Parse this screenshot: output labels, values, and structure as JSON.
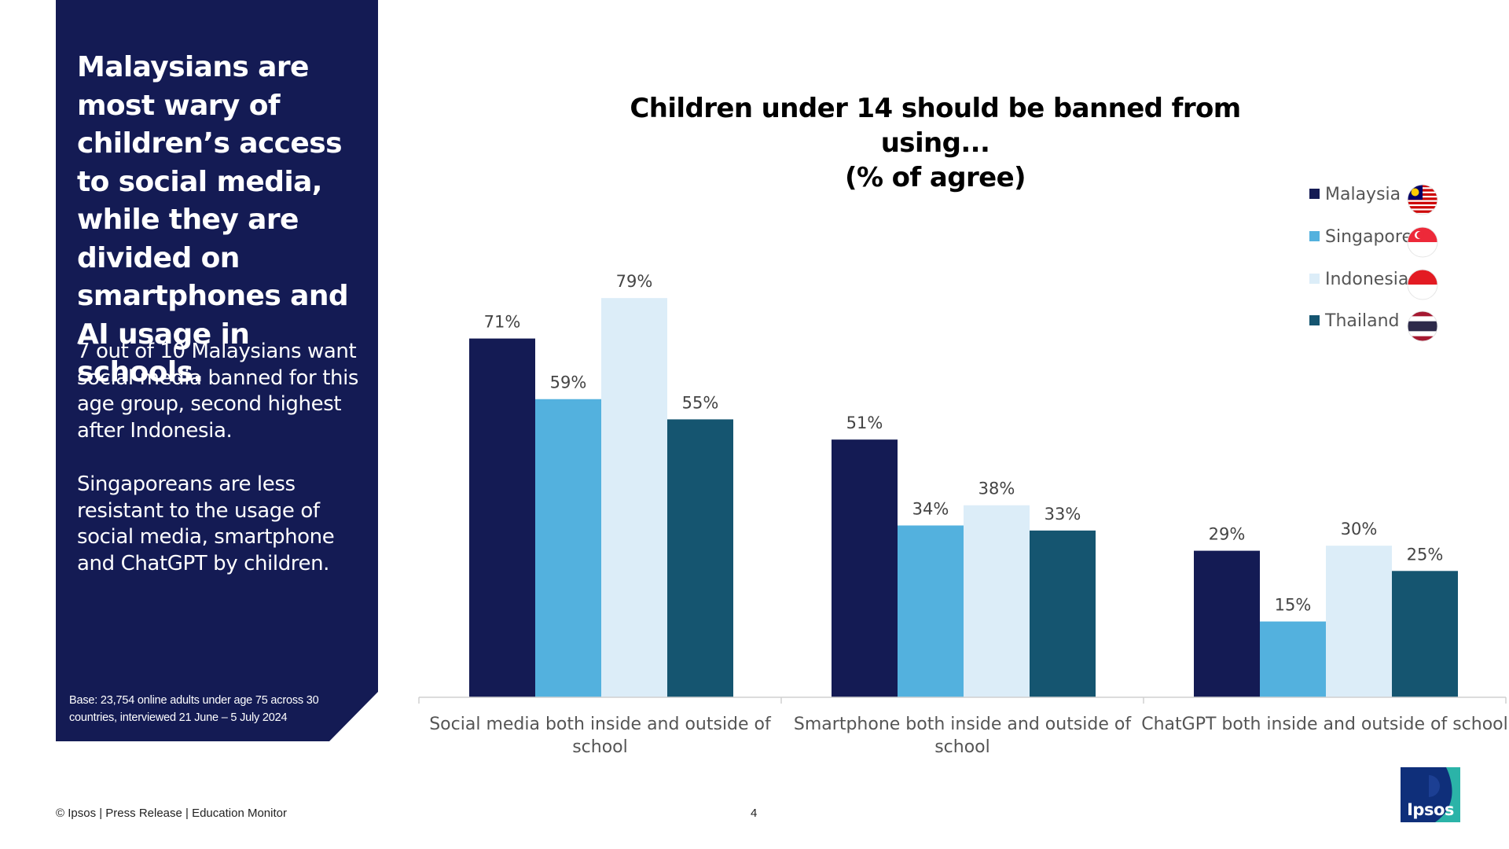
{
  "panel": {
    "headline": "Malaysians are most wary of children’s access to social media, while they are divided on smartphones and AI usage in schools.",
    "paragraph_1": "7 out of 10 Malaysians want social media banned for this age group, second highest after Indonesia.",
    "paragraph_2": "Singaporeans are less resistant to the usage of social media, smartphone and ChatGPT by children.",
    "base_note": "Base: 23,754 online adults under age 75 across 30 countries, interviewed 21 June – 5 July 2024",
    "color": "#141b54"
  },
  "chart_data": {
    "type": "bar",
    "title": "Children under 14 should be banned from using...",
    "subtitle": "(% of agree)",
    "categories": [
      [
        "Social media both inside and outside of",
        "school"
      ],
      [
        "Smartphone both inside and outside of",
        "school"
      ],
      [
        "ChatGPT both inside and outside of school"
      ]
    ],
    "series": [
      {
        "name": "Malaysia",
        "color": "#141b54",
        "values": [
          71,
          51,
          29
        ],
        "flag": "malaysia-flag"
      },
      {
        "name": "Singapore",
        "color": "#53b1de",
        "values": [
          59,
          34,
          15
        ],
        "flag": "singapore-flag"
      },
      {
        "name": "Indonesia",
        "color": "#dcedf8",
        "values": [
          79,
          38,
          30
        ],
        "flag": "indonesia-flag"
      },
      {
        "name": "Thailand",
        "color": "#155570",
        "values": [
          55,
          33,
          25
        ],
        "flag": "thailand-flag"
      }
    ],
    "value_suffix": "%",
    "ylim": [
      0,
      100
    ],
    "grid": false,
    "legend_position": "top-right"
  },
  "footer": {
    "copyright": "© Ipsos | Press Release | Education Monitor",
    "page_number": "4"
  },
  "logo": {
    "text": "Ipsos",
    "icon": "ipsos-logo"
  }
}
